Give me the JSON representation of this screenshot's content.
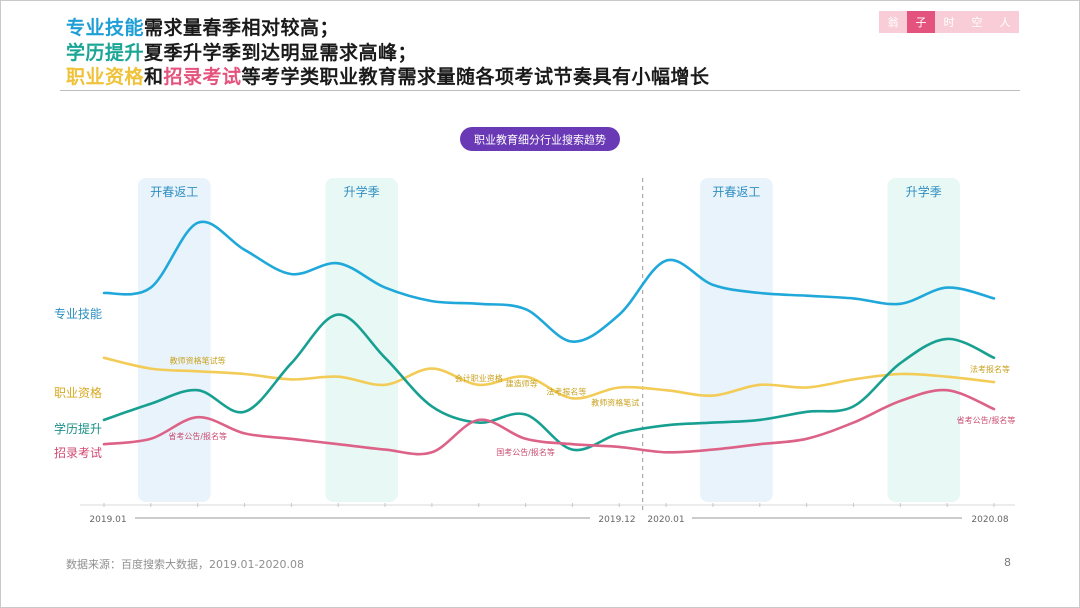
{
  "headline": {
    "line1": {
      "highlight": "专业技能",
      "rest": "需求量春季相对较高；"
    },
    "line2": {
      "highlight": "学历提升",
      "rest": "夏季升学季到达明显需求高峰；"
    },
    "line3": {
      "highlight1": "职业资格",
      "mid": "和",
      "highlight2": "招录考试",
      "rest": "等考学类职业教育需求量随各项考试节奏具有小幅增长"
    }
  },
  "logo": [
    "翁",
    "子",
    "时",
    "空",
    "人"
  ],
  "source": "数据来源：百度搜索大数据，2019.01-2020.08",
  "page_number": "8",
  "colors": {
    "skill": "#1fa8d9",
    "education": "#17a091",
    "qualification": "#f2cc57",
    "exam": "#dd6287",
    "badge": "#6a3ab6",
    "season_spring": "#e9f3fb",
    "season_summer": "#e8f8f4"
  },
  "chart_data": {
    "type": "line",
    "title": "职业教育细分行业搜索趋势",
    "x": [
      "2019.01",
      "2019.02",
      "2019.03",
      "2019.04",
      "2019.05",
      "2019.06",
      "2019.07",
      "2019.08",
      "2019.09",
      "2019.10",
      "2019.11",
      "2019.12",
      "2020.01",
      "2020.02",
      "2020.03",
      "2020.04",
      "2020.05",
      "2020.06",
      "2020.07",
      "2020.08"
    ],
    "x_tick_labels": {
      "start_2019": "2019.01",
      "end_2019": "2019.12",
      "start_2020": "2020.01",
      "end_2020": "2020.08"
    },
    "y_axis": {
      "shown": false,
      "range": [
        0,
        100
      ]
    },
    "grid": false,
    "seasons": [
      {
        "label": "开春返工",
        "from": "2019.02",
        "to": "2019.03"
      },
      {
        "label": "升学季",
        "from": "2019.06",
        "to": "2019.07"
      },
      {
        "label": "开春返工",
        "from": "2020.02",
        "to": "2020.03"
      },
      {
        "label": "升学季",
        "from": "2020.06",
        "to": "2020.07"
      }
    ],
    "divider_at": "2020.01",
    "series": [
      {
        "name": "专业技能",
        "key": "skill",
        "values": [
          70,
          72,
          96,
          86,
          77,
          81,
          72,
          67,
          66,
          64,
          52,
          62,
          82,
          73,
          70,
          69,
          68,
          66,
          72,
          68
        ]
      },
      {
        "name": "职业资格",
        "key": "qualification",
        "values": [
          46,
          42,
          41,
          40,
          38,
          39,
          36,
          42,
          36,
          39,
          31,
          35,
          34,
          32,
          36,
          35,
          38,
          40,
          39,
          37
        ]
      },
      {
        "name": "学历提升",
        "key": "education",
        "values": [
          23,
          29,
          34,
          26,
          44,
          62,
          46,
          28,
          22,
          25,
          12,
          18,
          21,
          22,
          23,
          26,
          28,
          44,
          53,
          46
        ]
      },
      {
        "name": "招录考试",
        "key": "exam",
        "values": [
          14,
          16,
          24,
          18,
          16,
          14,
          12,
          11,
          23,
          16,
          14,
          13,
          11,
          12,
          14,
          16,
          22,
          30,
          34,
          27
        ]
      }
    ],
    "annotations": [
      {
        "text": "教师资格笔试等",
        "x": "2019.03",
        "series": "qualification"
      },
      {
        "text": "省考公告/报名等",
        "x": "2019.03",
        "series": "exam"
      },
      {
        "text": "会计职业资格",
        "x": "2019.09",
        "series": "qualification"
      },
      {
        "text": "建造师等",
        "x": "2019.10",
        "series": "qualification"
      },
      {
        "text": "国考公告/报名等",
        "x": "2019.10",
        "series": "exam"
      },
      {
        "text": "法考报名等",
        "x": "2019.11",
        "series": "qualification"
      },
      {
        "text": "教师资格笔试",
        "x": "2019.12",
        "series": "qualification"
      },
      {
        "text": "法考报名等",
        "x": "2020.08",
        "series": "qualification"
      },
      {
        "text": "省考公告/报名等",
        "x": "2020.08",
        "series": "exam"
      }
    ]
  }
}
